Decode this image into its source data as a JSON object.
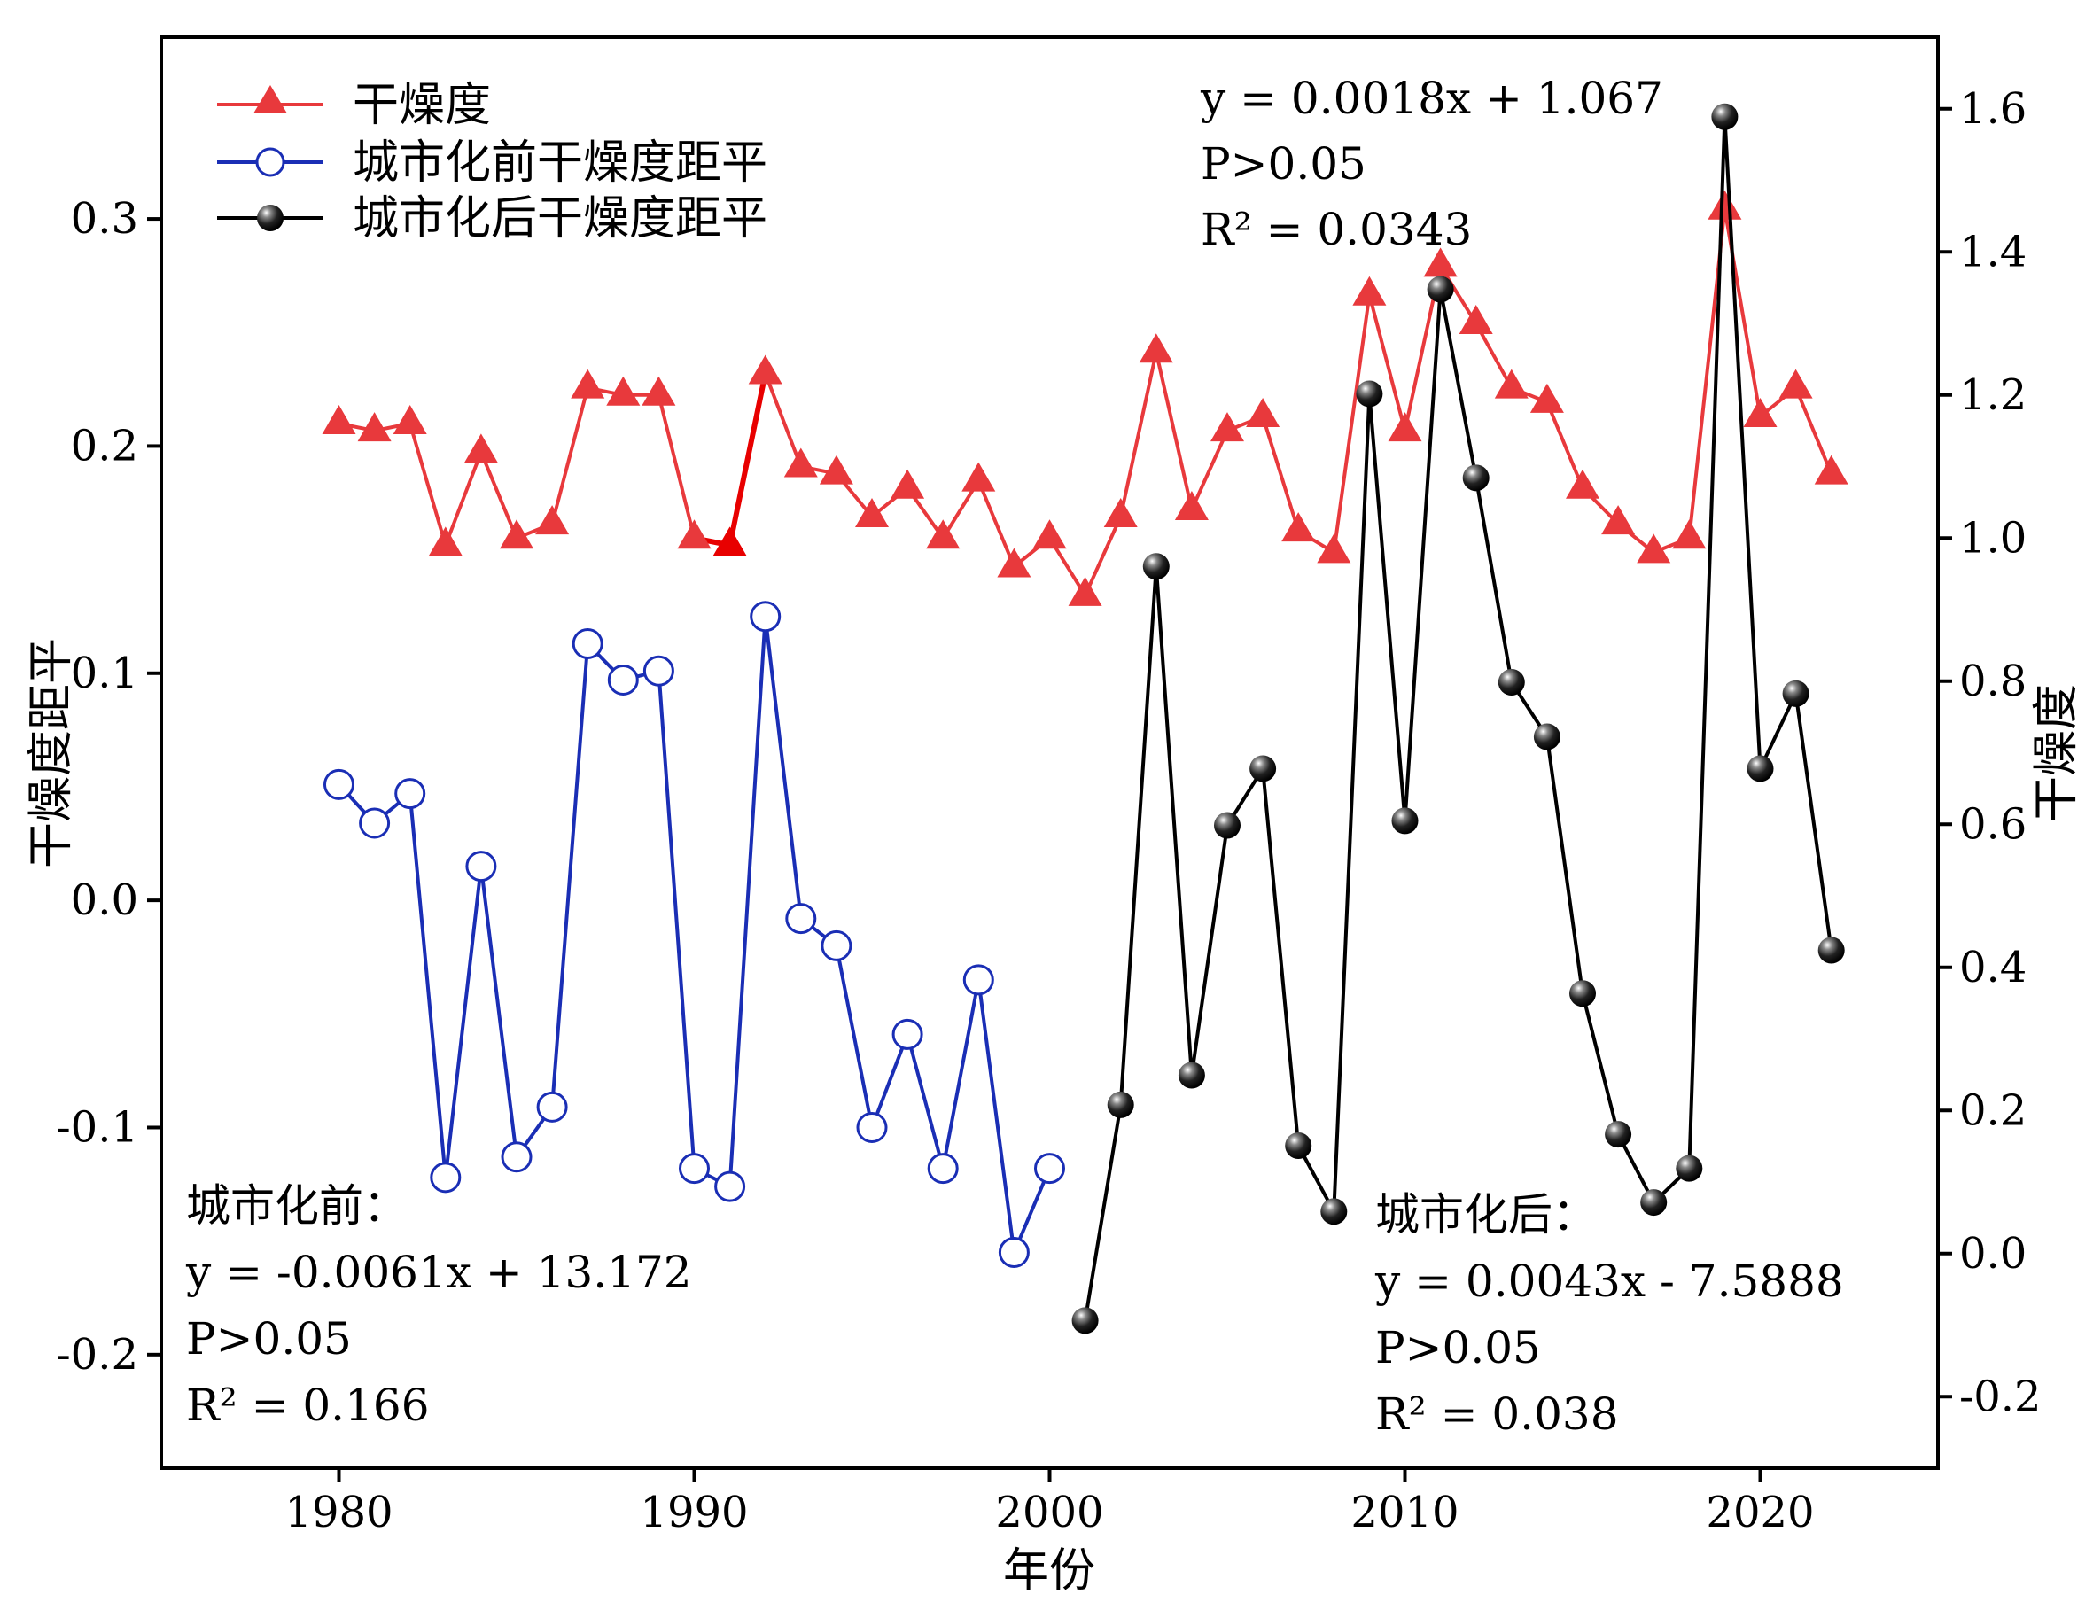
{
  "chart_data": {
    "type": "line",
    "xlabel": "年份",
    "ylabel_left": "干燥度距平",
    "ylabel_right": "干燥度",
    "xlim": [
      1975,
      2025
    ],
    "ylim_left": [
      -0.25,
      0.38
    ],
    "ylim_right": [
      -0.3,
      1.7
    ],
    "x_ticks": [
      1980,
      1990,
      2000,
      2010,
      2020
    ],
    "y_ticks_left": [
      -0.2,
      -0.1,
      0.0,
      0.1,
      0.2,
      0.3
    ],
    "y_ticks_right": [
      -0.2,
      0.0,
      0.2,
      0.4,
      0.6,
      0.8,
      1.0,
      1.2,
      1.4,
      1.6
    ],
    "y_tick_labels_left": [
      "-0.2",
      "-0.1",
      "0.0",
      "0.1",
      "0.2",
      "0.3"
    ],
    "y_tick_labels_right": [
      "-0.2",
      "0.0",
      "0.2",
      "0.4",
      "0.6",
      "0.8",
      "1.0",
      "1.2",
      "1.4",
      "1.6"
    ],
    "x_tick_labels": [
      "1980",
      "1990",
      "2000",
      "2010",
      "2020"
    ],
    "legend_placement": "top-left",
    "series": [
      {
        "name": "干燥度",
        "axis": "right",
        "color": "#e8393c",
        "marker": "triangle",
        "x": [
          1980,
          1981,
          1982,
          1983,
          1984,
          1985,
          1986,
          1987,
          1988,
          1989,
          1990,
          1991,
          1992,
          1993,
          1994,
          1995,
          1996,
          1997,
          1998,
          1999,
          2000,
          2001,
          2002,
          2003,
          2004,
          2005,
          2006,
          2007,
          2008,
          2009,
          2010,
          2011,
          2012,
          2013,
          2014,
          2015,
          2016,
          2017,
          2018,
          2019,
          2020,
          2021,
          2022
        ],
        "y": [
          1.16,
          1.15,
          1.16,
          0.99,
          1.12,
          1.0,
          1.02,
          1.21,
          1.2,
          1.2,
          1.0,
          0.99,
          1.23,
          1.1,
          1.09,
          1.03,
          1.07,
          1.0,
          1.08,
          0.96,
          1.0,
          0.92,
          1.03,
          1.26,
          1.04,
          1.15,
          1.17,
          1.01,
          0.98,
          1.34,
          1.15,
          1.38,
          1.3,
          1.21,
          1.19,
          1.07,
          1.02,
          0.98,
          1.0,
          1.46,
          1.17,
          1.21,
          1.09
        ]
      },
      {
        "name": "城市化前干燥度距平",
        "axis": "left",
        "color": "#1a2eb5",
        "marker": "open-circle",
        "x": [
          1980,
          1981,
          1982,
          1983,
          1984,
          1985,
          1986,
          1987,
          1988,
          1989,
          1990,
          1991,
          1992,
          1993,
          1994,
          1995,
          1996,
          1997,
          1998,
          1999,
          2000
        ],
        "y": [
          0.051,
          0.034,
          0.047,
          -0.122,
          0.015,
          -0.113,
          -0.091,
          0.113,
          0.097,
          0.101,
          -0.118,
          -0.126,
          0.125,
          -0.008,
          -0.02,
          -0.1,
          -0.059,
          -0.118,
          -0.035,
          -0.155,
          -0.118
        ]
      },
      {
        "name": "城市化后干燥度距平",
        "axis": "left",
        "color": "#000000",
        "marker": "filled-sphere",
        "x": [
          2001,
          2002,
          2003,
          2004,
          2005,
          2006,
          2007,
          2008,
          2009,
          2010,
          2011,
          2012,
          2013,
          2014,
          2015,
          2016,
          2017,
          2018,
          2019,
          2020,
          2021,
          2022
        ],
        "y": [
          -0.185,
          -0.09,
          0.147,
          -0.077,
          0.033,
          0.058,
          -0.108,
          -0.137,
          0.223,
          0.035,
          0.269,
          0.186,
          0.096,
          0.072,
          -0.041,
          -0.103,
          -0.133,
          -0.118,
          0.345,
          0.058,
          0.091,
          -0.022
        ]
      }
    ],
    "trendlines": [
      {
        "series": "干燥度",
        "slope": 0.0018,
        "intercept": 1.067,
        "x_range": [
          1980,
          2022
        ],
        "axis": "right",
        "color": "#e00000"
      },
      {
        "series": "城市化前干燥度距平",
        "slope": -0.0061,
        "intercept": 13.172,
        "x_range": [
          1980,
          2000
        ],
        "axis": "left",
        "color": "#1a2eb5"
      },
      {
        "series": "城市化后干燥度距平",
        "slope": 0.0043,
        "intercept": -7.5888,
        "x_range": [
          2001,
          2022
        ],
        "axis": "left",
        "color": "#444444"
      }
    ],
    "annotations": {
      "top": {
        "eq": "y = 0.0018x + 1.067",
        "p": "P>0.05",
        "r2": "R² = 0.0343"
      },
      "before": {
        "title": "城市化前：",
        "eq": "y = -0.0061x + 13.172",
        "p": "P>0.05",
        "r2": "R² = 0.166"
      },
      "after": {
        "title": "城市化后：",
        "eq": "y = 0.0043x - 7.5888",
        "p": "P>0.05",
        "r2": "R² = 0.038"
      }
    },
    "highlight": {
      "series": "干燥度",
      "x": [
        1990,
        1991,
        1992
      ],
      "color": "#e80000"
    }
  }
}
